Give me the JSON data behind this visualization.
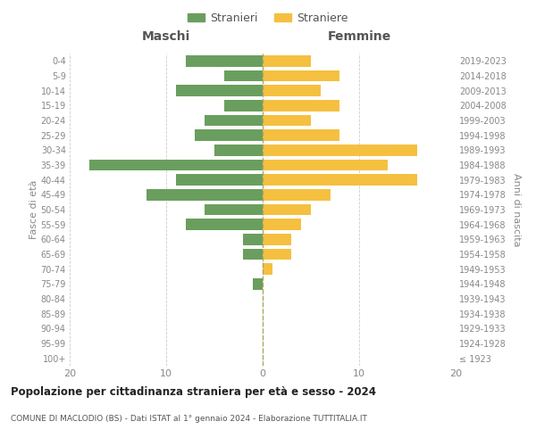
{
  "age_groups": [
    "100+",
    "95-99",
    "90-94",
    "85-89",
    "80-84",
    "75-79",
    "70-74",
    "65-69",
    "60-64",
    "55-59",
    "50-54",
    "45-49",
    "40-44",
    "35-39",
    "30-34",
    "25-29",
    "20-24",
    "15-19",
    "10-14",
    "5-9",
    "0-4"
  ],
  "birth_years": [
    "≤ 1923",
    "1924-1928",
    "1929-1933",
    "1934-1938",
    "1939-1943",
    "1944-1948",
    "1949-1953",
    "1954-1958",
    "1959-1963",
    "1964-1968",
    "1969-1973",
    "1974-1978",
    "1979-1983",
    "1984-1988",
    "1989-1993",
    "1994-1998",
    "1999-2003",
    "2004-2008",
    "2009-2013",
    "2014-2018",
    "2019-2023"
  ],
  "maschi": [
    0,
    0,
    0,
    0,
    0,
    1,
    0,
    2,
    2,
    8,
    6,
    12,
    9,
    18,
    5,
    7,
    6,
    4,
    9,
    4,
    8
  ],
  "femmine": [
    0,
    0,
    0,
    0,
    0,
    0,
    1,
    3,
    3,
    4,
    5,
    7,
    16,
    13,
    16,
    8,
    5,
    8,
    6,
    8,
    5
  ],
  "color_maschi": "#6a9e5e",
  "color_femmine": "#f5c040",
  "title": "Popolazione per cittadinanza straniera per età e sesso - 2024",
  "subtitle": "COMUNE DI MACLODIO (BS) - Dati ISTAT al 1° gennaio 2024 - Elaborazione TUTTITALIA.IT",
  "label_maschi": "Stranieri",
  "label_femmine": "Straniere",
  "label_fascia": "Fasce di età",
  "label_anni": "Anni di nascita",
  "header_maschi": "Maschi",
  "header_femmine": "Femmine",
  "xlim": 20,
  "background_color": "#ffffff",
  "grid_color": "#cccccc"
}
